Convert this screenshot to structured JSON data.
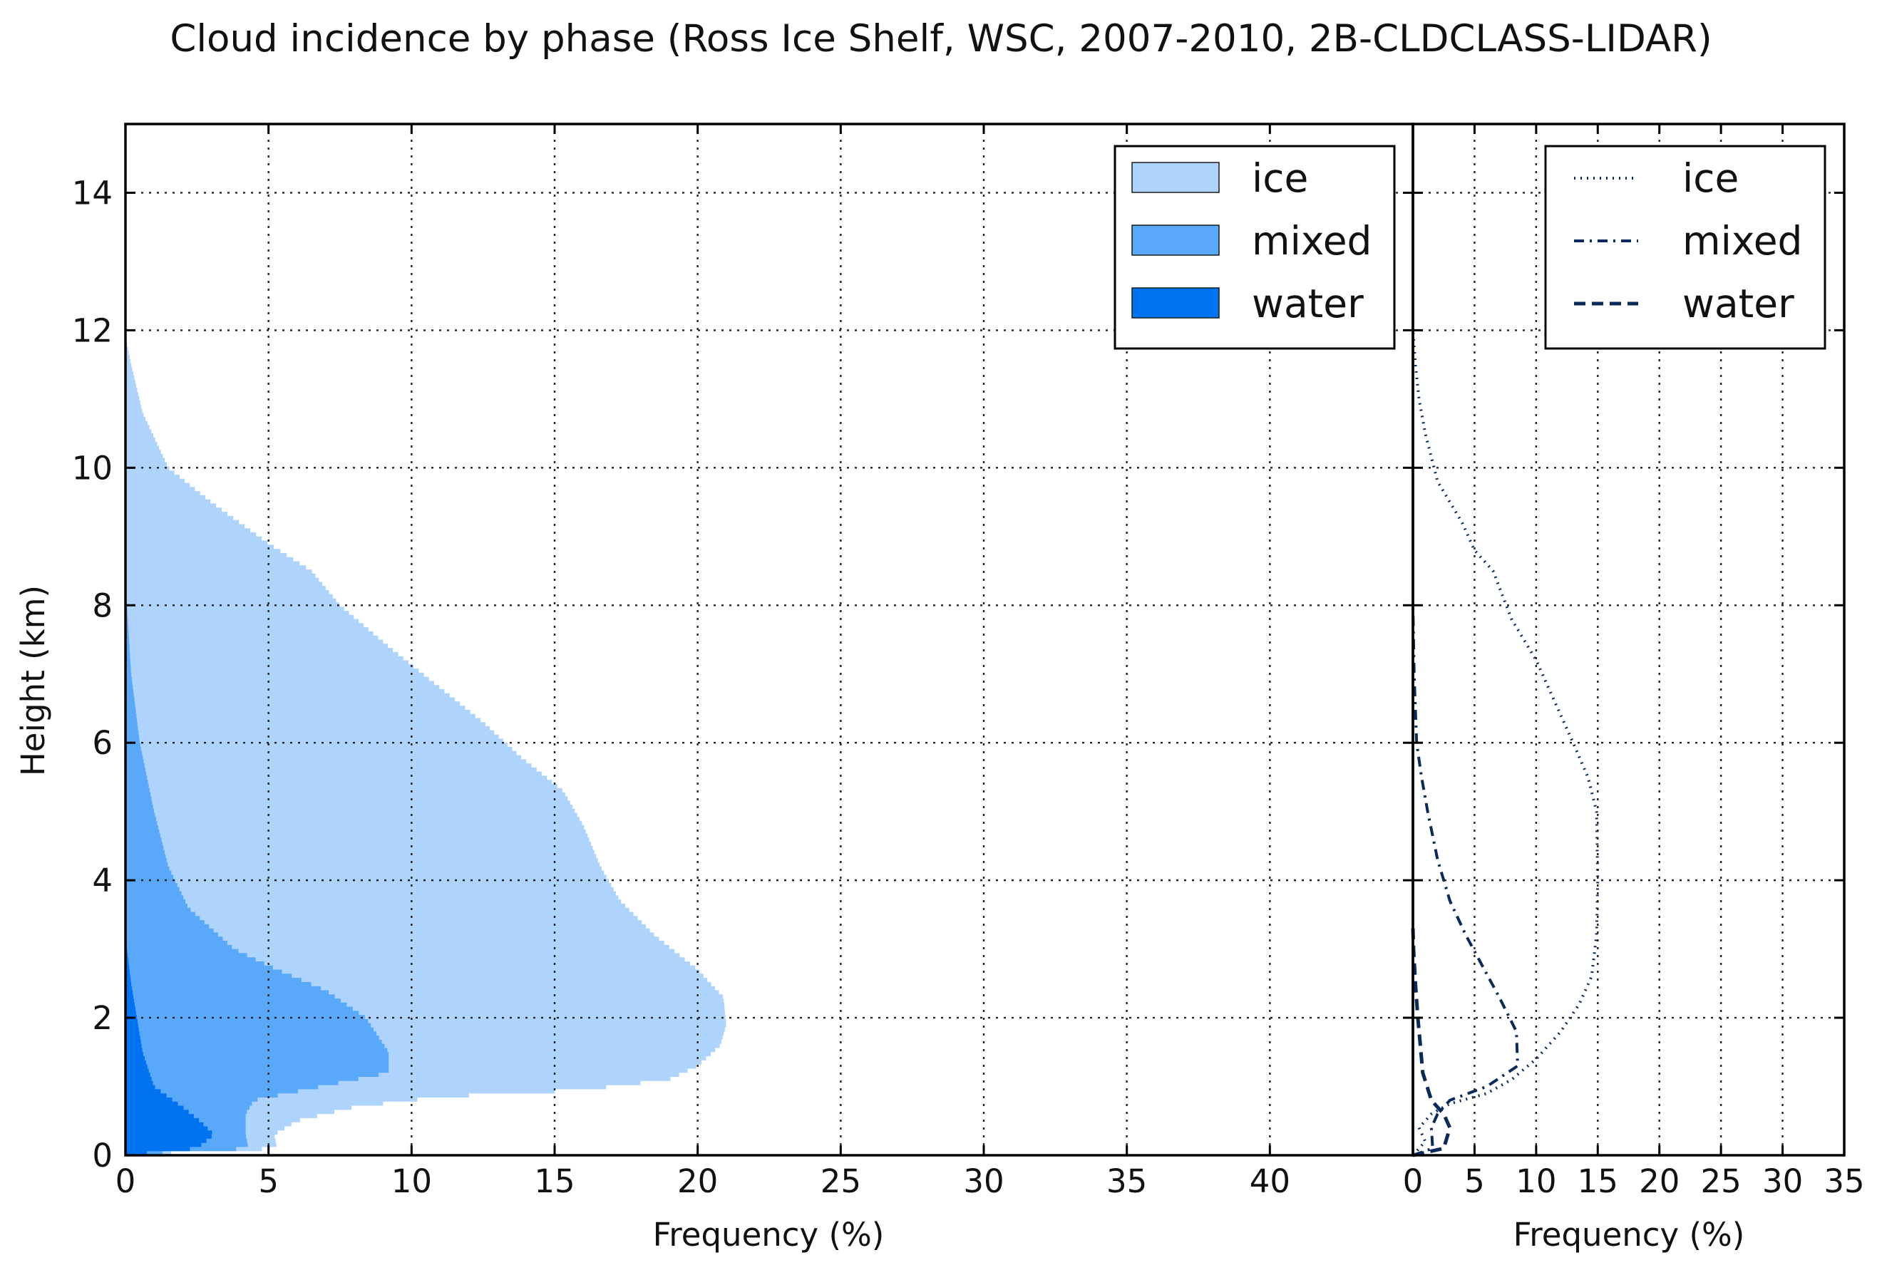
{
  "chart_data": [
    {
      "type": "area",
      "title": "Cloud incidence by phase (Ross Ice Shelf, WSC, 2007-2010, 2B-CLDCLASS-LIDAR)",
      "xlabel": "Frequency (%)",
      "ylabel": "Height (km)",
      "xlim": [
        0,
        45
      ],
      "ylim": [
        0,
        15
      ],
      "xticks": [
        "0",
        "5",
        "10",
        "15",
        "20",
        "25",
        "30",
        "35",
        "40"
      ],
      "yticks": [
        "0",
        "2",
        "4",
        "6",
        "8",
        "10",
        "12",
        "14"
      ],
      "grid": true,
      "stacked": true,
      "legend_position": "top-right",
      "series": [
        {
          "name": "water",
          "color": "#0073f0",
          "points": [
            [
              0,
              0
            ],
            [
              2.5,
              0.1
            ],
            [
              3.1,
              0.3
            ],
            [
              2.6,
              0.5
            ],
            [
              2.0,
              0.7
            ],
            [
              1.0,
              1.0
            ],
            [
              0.6,
              1.5
            ],
            [
              0.4,
              2.0
            ],
            [
              0.2,
              2.5
            ],
            [
              0.05,
              3.0
            ],
            [
              0,
              3.3
            ]
          ]
        },
        {
          "name": "mixed",
          "color": "#5aa8fa",
          "points": [
            [
              0,
              0
            ],
            [
              4.3,
              0.1
            ],
            [
              4.2,
              0.3
            ],
            [
              4.2,
              0.6
            ],
            [
              4.5,
              0.8
            ],
            [
              9.2,
              1.2
            ],
            [
              9.2,
              1.5
            ],
            [
              8.4,
              2.0
            ],
            [
              7.0,
              2.4
            ],
            [
              5.3,
              2.7
            ],
            [
              3.8,
              3.0
            ],
            [
              2.2,
              3.6
            ],
            [
              1.5,
              4.2
            ],
            [
              1.0,
              5.0
            ],
            [
              0.5,
              6.0
            ],
            [
              0.2,
              7.0
            ],
            [
              0.05,
              8.0
            ],
            [
              0,
              8.3
            ]
          ]
        },
        {
          "name": "ice",
          "color": "#aed3fc",
          "points": [
            [
              0,
              0
            ],
            [
              5.3,
              0.1
            ],
            [
              5.2,
              0.3
            ],
            [
              6.0,
              0.5
            ],
            [
              8.0,
              0.7
            ],
            [
              11.0,
              0.85
            ],
            [
              16.0,
              0.95
            ],
            [
              19.0,
              1.1
            ],
            [
              20.0,
              1.3
            ],
            [
              20.8,
              1.6
            ],
            [
              21.0,
              1.9
            ],
            [
              20.9,
              2.3
            ],
            [
              20.0,
              2.7
            ],
            [
              18.5,
              3.2
            ],
            [
              17.3,
              3.7
            ],
            [
              16.6,
              4.2
            ],
            [
              16.0,
              4.8
            ],
            [
              15.3,
              5.3
            ],
            [
              13.8,
              5.8
            ],
            [
              12.5,
              6.3
            ],
            [
              11.0,
              6.8
            ],
            [
              9.2,
              7.4
            ],
            [
              7.5,
              8.0
            ],
            [
              6.5,
              8.5
            ],
            [
              5.0,
              8.9
            ],
            [
              3.0,
              9.5
            ],
            [
              1.5,
              10.0
            ],
            [
              0.6,
              10.8
            ],
            [
              0.2,
              11.5
            ],
            [
              0,
              11.9
            ]
          ]
        }
      ]
    },
    {
      "type": "line",
      "title": "",
      "xlabel": "Frequency (%)",
      "ylabel": "",
      "xlim": [
        0,
        35
      ],
      "ylim": [
        0,
        15
      ],
      "xticks": [
        "0",
        "5",
        "10",
        "15",
        "20",
        "25",
        "30",
        "35"
      ],
      "grid": true,
      "legend_position": "top-right",
      "series": [
        {
          "name": "ice",
          "color": "#0b2a5c",
          "style": "dotted",
          "points": [
            [
              0,
              0
            ],
            [
              1.0,
              0.2
            ],
            [
              0.5,
              0.4
            ],
            [
              1.5,
              0.6
            ],
            [
              3.0,
              0.75
            ],
            [
              6.0,
              0.9
            ],
            [
              8.0,
              1.1
            ],
            [
              10.0,
              1.4
            ],
            [
              12.0,
              1.8
            ],
            [
              13.5,
              2.2
            ],
            [
              14.5,
              2.6
            ],
            [
              14.9,
              3.2
            ],
            [
              15.0,
              4.0
            ],
            [
              14.9,
              5.0
            ],
            [
              14.2,
              5.5
            ],
            [
              13.0,
              6.0
            ],
            [
              11.5,
              6.6
            ],
            [
              10.0,
              7.2
            ],
            [
              8.0,
              7.8
            ],
            [
              6.5,
              8.5
            ],
            [
              5.0,
              8.8
            ],
            [
              4.0,
              9.2
            ],
            [
              2.0,
              9.8
            ],
            [
              1.0,
              10.5
            ],
            [
              0.5,
              11.0
            ],
            [
              0.2,
              11.5
            ],
            [
              0,
              12.0
            ]
          ]
        },
        {
          "name": "mixed",
          "color": "#0b2a5c",
          "style": "dashdot",
          "points": [
            [
              0,
              0
            ],
            [
              1.6,
              0.1
            ],
            [
              1.5,
              0.4
            ],
            [
              2.0,
              0.6
            ],
            [
              3.0,
              0.8
            ],
            [
              6.0,
              1.0
            ],
            [
              8.5,
              1.3
            ],
            [
              8.4,
              1.8
            ],
            [
              7.0,
              2.3
            ],
            [
              5.5,
              2.8
            ],
            [
              4.3,
              3.2
            ],
            [
              3.0,
              3.7
            ],
            [
              2.0,
              4.3
            ],
            [
              1.2,
              5.0
            ],
            [
              0.7,
              5.5
            ],
            [
              0.3,
              6.0
            ],
            [
              0.1,
              7.0
            ],
            [
              0,
              8.0
            ]
          ]
        },
        {
          "name": "water",
          "color": "#0b2a5c",
          "style": "dashed",
          "points": [
            [
              0,
              0
            ],
            [
              2.5,
              0.1
            ],
            [
              3.0,
              0.4
            ],
            [
              2.5,
              0.6
            ],
            [
              1.5,
              0.8
            ],
            [
              0.8,
              1.2
            ],
            [
              0.6,
              1.6
            ],
            [
              0.4,
              2.0
            ],
            [
              0.2,
              2.5
            ],
            [
              0.05,
              3.0
            ],
            [
              0,
              3.3
            ]
          ]
        }
      ]
    }
  ]
}
